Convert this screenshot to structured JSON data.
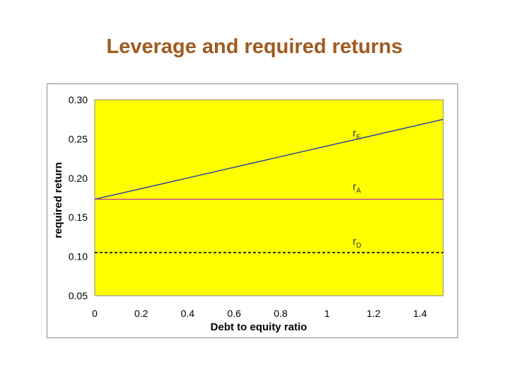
{
  "slide": {
    "title": "Leverage and required returns"
  },
  "chart_data": {
    "type": "line",
    "xlabel": "Debt to equity ratio",
    "ylabel": "required return",
    "xlim": [
      0,
      1.5
    ],
    "ylim": [
      0.05,
      0.3
    ],
    "xticks": [
      "0",
      "0.2",
      "0.4",
      "0.6",
      "0.8",
      "1",
      "1.2",
      "1.4"
    ],
    "xtick_values": [
      0,
      0.2,
      0.4,
      0.6,
      0.8,
      1.0,
      1.2,
      1.4
    ],
    "yticks": [
      "0.30",
      "0.25",
      "0.20",
      "0.15",
      "0.10",
      "0.05"
    ],
    "ytick_values": [
      0.3,
      0.25,
      0.2,
      0.15,
      0.1,
      0.05
    ],
    "plot_background": "#ffff00",
    "grid": false,
    "series": [
      {
        "id": "rE",
        "label_main": "r",
        "label_sub": "E",
        "color": "#1f3fa0",
        "style": "solid",
        "x": [
          0,
          1.5
        ],
        "y": [
          0.173,
          0.275
        ]
      },
      {
        "id": "rA",
        "label_main": "r",
        "label_sub": "A",
        "color": "#c040a0",
        "style": "solid",
        "x": [
          0,
          1.5
        ],
        "y": [
          0.173,
          0.173
        ]
      },
      {
        "id": "rD",
        "label_main": "r",
        "label_sub": "D",
        "color": "#000000",
        "style": "dashed",
        "x": [
          0,
          1.5
        ],
        "y": [
          0.105,
          0.105
        ]
      }
    ],
    "annotations": [
      {
        "series": "rE",
        "x": 1.11,
        "y": 0.253
      },
      {
        "series": "rA",
        "x": 1.11,
        "y": 0.185
      },
      {
        "series": "rD",
        "x": 1.11,
        "y": 0.115
      }
    ]
  }
}
